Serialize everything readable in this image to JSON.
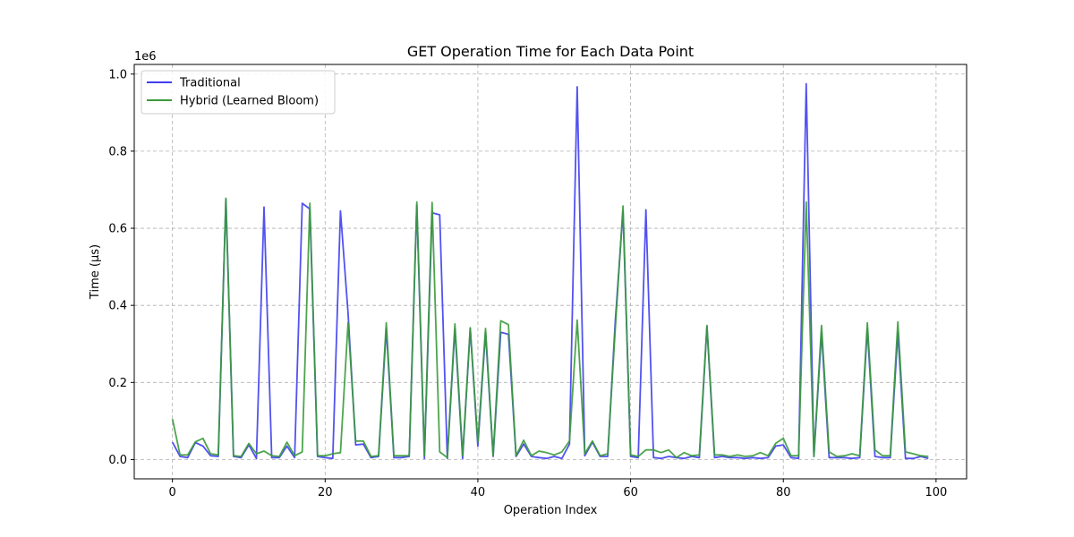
{
  "chart_data": {
    "type": "line",
    "title": "GET Operation Time for Each Data Point",
    "xlabel": "Operation Index",
    "ylabel": "Time (µs)",
    "y_offset_label": "1e6",
    "xlim": [
      -5,
      104
    ],
    "ylim": [
      -50000,
      1025000
    ],
    "x_ticks": [
      0,
      20,
      40,
      60,
      80,
      100
    ],
    "x_tick_labels": [
      "0",
      "20",
      "40",
      "60",
      "80",
      "100"
    ],
    "y_ticks": [
      0,
      200000,
      400000,
      600000,
      800000,
      1000000
    ],
    "y_tick_labels": [
      "0.0",
      "0.2",
      "0.4",
      "0.6",
      "0.8",
      "1.0"
    ],
    "grid": true,
    "legend_position": "top-left",
    "series": [
      {
        "name": "Traditional",
        "color": "#3f3fef",
        "values": [
          45000,
          8000,
          5000,
          44000,
          35000,
          10000,
          8000,
          675000,
          8000,
          5000,
          38000,
          3000,
          655000,
          5000,
          5000,
          35000,
          5000,
          665000,
          650000,
          8000,
          5000,
          3000,
          645000,
          380000,
          38000,
          40000,
          5000,
          8000,
          340000,
          5000,
          5000,
          8000,
          660000,
          3000,
          640000,
          635000,
          3000,
          340000,
          3000,
          340000,
          35000,
          330000,
          8000,
          330000,
          325000,
          8000,
          40000,
          8000,
          5000,
          3000,
          8000,
          3000,
          40000,
          967000,
          10000,
          45000,
          8000,
          8000,
          360000,
          645000,
          8000,
          5000,
          648000,
          5000,
          3000,
          8000,
          5000,
          3000,
          8000,
          5000,
          345000,
          5000,
          8000,
          5000,
          5000,
          3000,
          5000,
          3000,
          5000,
          35000,
          38000,
          5000,
          3000,
          975000,
          8000,
          330000,
          5000,
          5000,
          5000,
          3000,
          5000,
          340000,
          8000,
          5000,
          5000,
          330000,
          3000,
          3000,
          8000,
          3000
        ]
      },
      {
        "name": "Hybrid (Learned Bloom)",
        "color": "#3a9a3a",
        "values": [
          105000,
          12000,
          12000,
          46000,
          55000,
          15000,
          12000,
          678000,
          10000,
          8000,
          42000,
          15000,
          22000,
          10000,
          8000,
          45000,
          10000,
          20000,
          665000,
          10000,
          10000,
          15000,
          18000,
          355000,
          48000,
          48000,
          8000,
          10000,
          355000,
          10000,
          10000,
          10000,
          668000,
          10000,
          667000,
          20000,
          5000,
          352000,
          10000,
          342000,
          45000,
          340000,
          10000,
          360000,
          350000,
          10000,
          50000,
          10000,
          22000,
          18000,
          12000,
          20000,
          48000,
          362000,
          15000,
          48000,
          10000,
          15000,
          340000,
          658000,
          12000,
          8000,
          25000,
          25000,
          18000,
          25000,
          5000,
          18000,
          10000,
          12000,
          348000,
          12000,
          12000,
          8000,
          12000,
          8000,
          10000,
          18000,
          10000,
          42000,
          55000,
          10000,
          10000,
          668000,
          8000,
          348000,
          20000,
          8000,
          10000,
          15000,
          10000,
          355000,
          25000,
          10000,
          10000,
          357000,
          20000,
          15000,
          10000,
          8000
        ]
      }
    ]
  }
}
